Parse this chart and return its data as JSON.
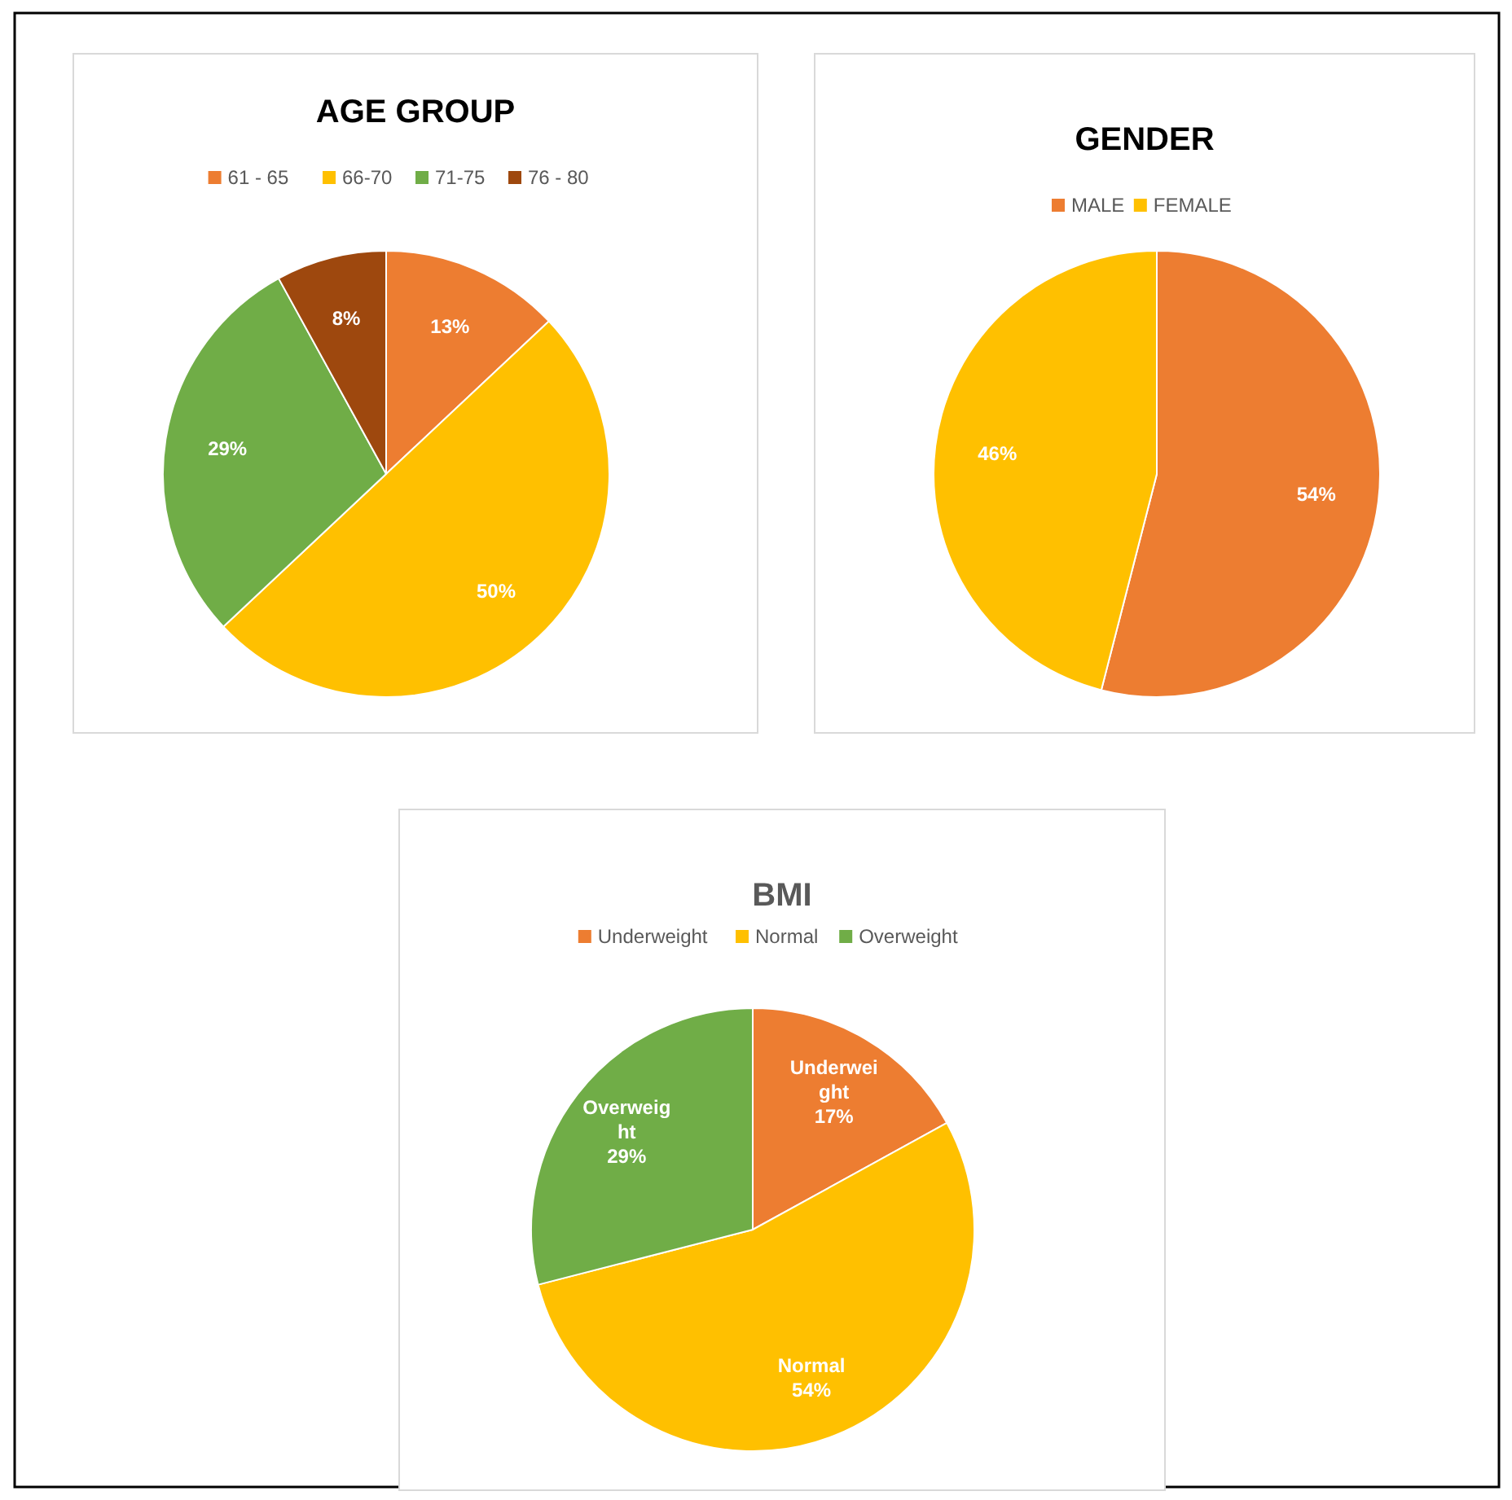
{
  "chart_data": [
    {
      "type": "pie",
      "title": "AGE GROUP",
      "categories": [
        "61 - 65",
        "66-70",
        "71-75",
        "76 - 80"
      ],
      "values": [
        13,
        50,
        29,
        8
      ],
      "colors": [
        "#ed7d31",
        "#ffc000",
        "#70ad47",
        "#9e480e"
      ],
      "value_labels": [
        "13%",
        "50%",
        "29%",
        "8%"
      ],
      "legend": "top"
    },
    {
      "type": "pie",
      "title": "GENDER",
      "categories": [
        "MALE",
        "FEMALE"
      ],
      "values": [
        54,
        46
      ],
      "colors": [
        "#ed7d31",
        "#ffc000"
      ],
      "value_labels": [
        "54%",
        "46%"
      ],
      "legend": "top"
    },
    {
      "type": "pie",
      "title": "BMI",
      "categories": [
        "Underweight",
        "Normal",
        "Overweight"
      ],
      "values": [
        17,
        54,
        29
      ],
      "colors": [
        "#ed7d31",
        "#ffc000",
        "#70ad47"
      ],
      "value_labels": [
        "Underwei\nght\n17%",
        "Normal\n54%",
        "Overweig\nht\n29%"
      ],
      "legend": "top"
    }
  ]
}
